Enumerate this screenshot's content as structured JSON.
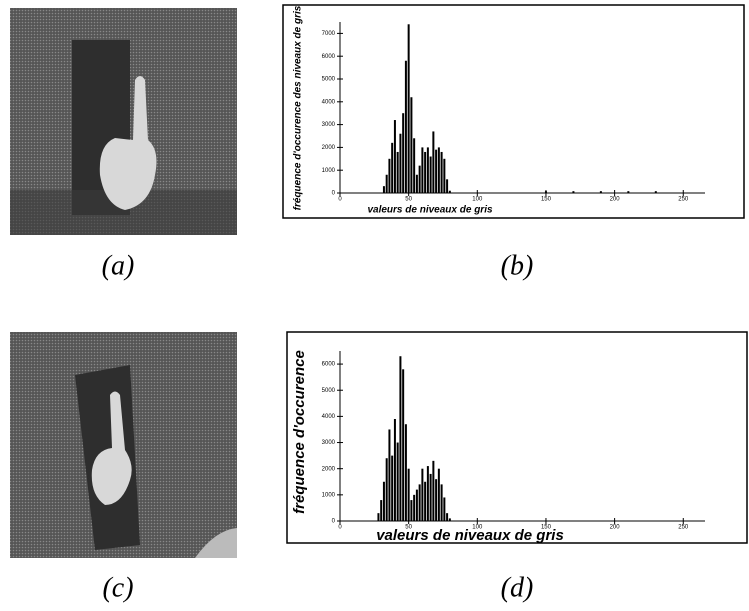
{
  "captions": [
    "(a)",
    "(b)",
    "(c)",
    "(d)"
  ],
  "chart_data": [
    {
      "type": "bar",
      "color": "#000000",
      "xlabel": "valeurs de niveaux de gris",
      "ylabel": "fréquence d'occurence des niveaux de gris",
      "x": [
        30,
        32,
        34,
        36,
        38,
        40,
        42,
        44,
        46,
        48,
        50,
        52,
        54,
        56,
        58,
        60,
        62,
        64,
        66,
        68,
        70,
        72,
        74,
        76,
        78,
        80,
        150,
        170,
        190,
        210,
        230
      ],
      "values": [
        0,
        300,
        800,
        1500,
        2200,
        3200,
        1800,
        2600,
        3500,
        5800,
        7400,
        4200,
        2400,
        800,
        1200,
        2000,
        1800,
        2000,
        1600,
        2700,
        1900,
        2000,
        1800,
        1500,
        600,
        100,
        80,
        80,
        80,
        80,
        80
      ],
      "xlim": [
        0,
        260
      ],
      "xticks": [
        0,
        50,
        100,
        150,
        200,
        250
      ],
      "ylim": [
        0,
        7500
      ],
      "yticks": [
        0,
        1000,
        2000,
        3000,
        4000,
        5000,
        6000,
        7000
      ]
    },
    {
      "type": "bar",
      "color": "#000000",
      "xlabel": "valeurs de niveaux de gris",
      "ylabel": "fréquence d'occurence",
      "x": [
        28,
        30,
        32,
        34,
        36,
        38,
        40,
        42,
        44,
        46,
        48,
        50,
        52,
        54,
        56,
        58,
        60,
        62,
        64,
        66,
        68,
        70,
        72,
        74,
        76,
        78,
        80
      ],
      "values": [
        300,
        800,
        1500,
        2400,
        3500,
        2500,
        3900,
        3000,
        6300,
        5800,
        3700,
        2000,
        800,
        1000,
        1200,
        1400,
        2000,
        1500,
        2100,
        1800,
        2300,
        1600,
        2000,
        1400,
        900,
        300,
        100
      ],
      "xlim": [
        0,
        260
      ],
      "xticks": [
        0,
        50,
        100,
        150,
        200,
        250
      ],
      "ylim": [
        0,
        6500
      ],
      "yticks": [
        0,
        1000,
        2000,
        3000,
        4000,
        5000,
        6000
      ]
    }
  ]
}
